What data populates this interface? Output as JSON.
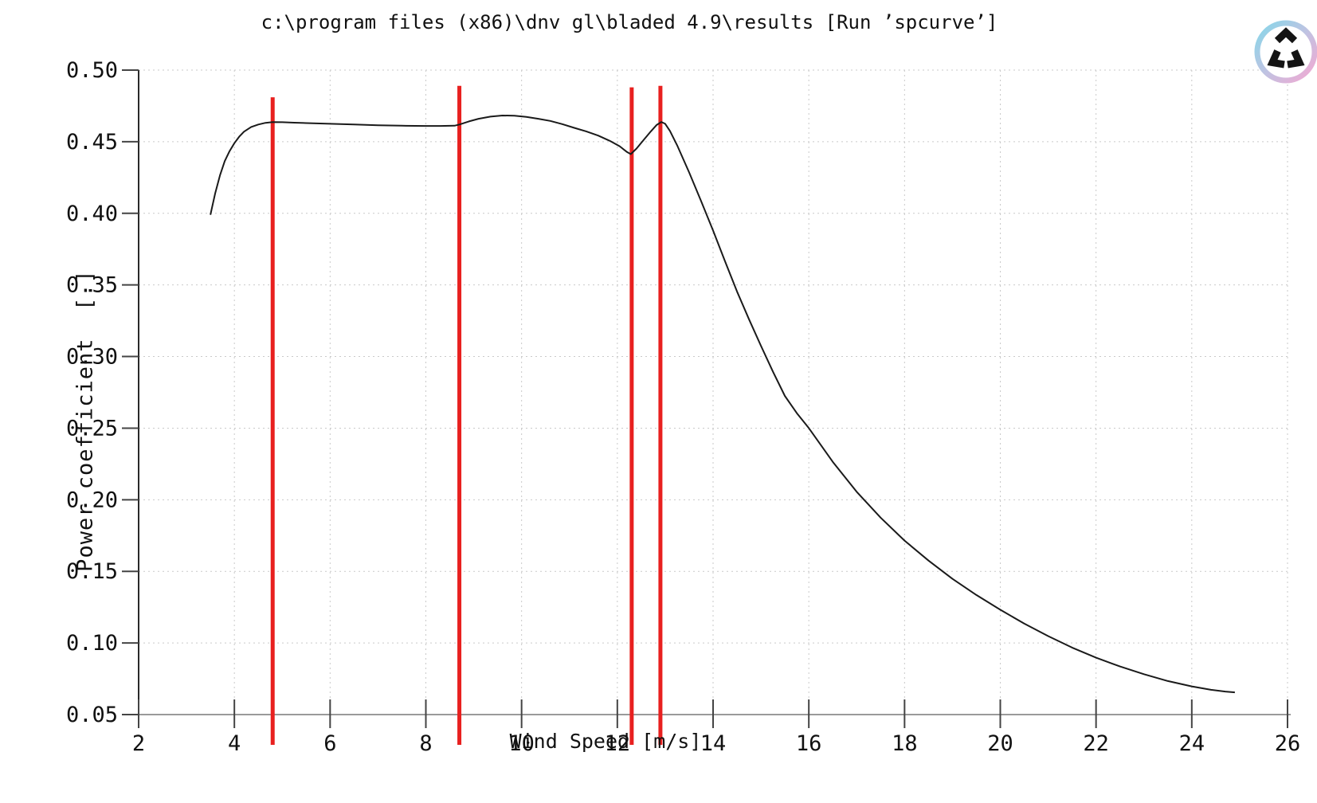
{
  "header": {
    "title": "c:\\program files (x86)\\dnv gl\\bladed 4.9\\results [Run ’spcurve’]"
  },
  "logo": {
    "name": "bladed-rotor-logo",
    "ring_color_top": "#86d7e9",
    "ring_color_bottom": "#f3a8d2",
    "glyph_color": "#141414"
  },
  "chart_data": {
    "type": "line",
    "title": "c:\\program files (x86)\\dnv gl\\bladed 4.9\\results [Run ’spcurve’]",
    "xlabel": "Wind Speed [m/s]",
    "ylabel": "Power coefficient  [.]",
    "xlim": [
      2,
      26
    ],
    "ylim": [
      0.05,
      0.5
    ],
    "grid": true,
    "legend_position": "none",
    "xticks": [
      2,
      4,
      6,
      8,
      10,
      12,
      14,
      16,
      18,
      20,
      22,
      24,
      26
    ],
    "xtick_labels": [
      "2",
      "4",
      "6",
      "8",
      "10",
      "12",
      "14",
      "16",
      "18",
      "20",
      "22",
      "24",
      "26"
    ],
    "yticks": [
      0.05,
      0.1,
      0.15,
      0.2,
      0.25,
      0.3,
      0.35,
      0.4,
      0.45,
      0.5
    ],
    "ytick_labels": [
      "0.05",
      "0.10",
      "0.15",
      "0.20",
      "0.25",
      "0.30",
      "0.35",
      "0.40",
      "0.45",
      "0.50"
    ],
    "curve_color": "#1a1a1a",
    "grid_color": "#c9c9c9",
    "marker_line_color": "#e8201f",
    "marker_lines": [
      {
        "x": 4.8,
        "top": 0.481
      },
      {
        "x": 8.7,
        "top": 0.489
      },
      {
        "x": 12.3,
        "top": 0.488
      },
      {
        "x": 12.9,
        "top": 0.489
      }
    ],
    "series": [
      {
        "name": "Power coefficient",
        "points": [
          [
            3.5,
            0.399
          ],
          [
            3.6,
            0.414
          ],
          [
            3.7,
            0.4265
          ],
          [
            3.8,
            0.4365
          ],
          [
            3.9,
            0.4435
          ],
          [
            4.0,
            0.449
          ],
          [
            4.1,
            0.4535
          ],
          [
            4.2,
            0.457
          ],
          [
            4.35,
            0.4603
          ],
          [
            4.5,
            0.462
          ],
          [
            4.65,
            0.4632
          ],
          [
            4.8,
            0.4637
          ],
          [
            5.0,
            0.4636
          ],
          [
            5.25,
            0.4633
          ],
          [
            5.5,
            0.463
          ],
          [
            6.0,
            0.4625
          ],
          [
            6.5,
            0.462
          ],
          [
            7.0,
            0.4615
          ],
          [
            7.5,
            0.4612
          ],
          [
            8.0,
            0.461
          ],
          [
            8.3,
            0.461
          ],
          [
            8.6,
            0.4612
          ],
          [
            8.7,
            0.462
          ],
          [
            8.9,
            0.4642
          ],
          [
            9.1,
            0.466
          ],
          [
            9.35,
            0.4675
          ],
          [
            9.6,
            0.4683
          ],
          [
            9.85,
            0.4682
          ],
          [
            10.1,
            0.4673
          ],
          [
            10.35,
            0.466
          ],
          [
            10.6,
            0.4645
          ],
          [
            10.85,
            0.4623
          ],
          [
            11.1,
            0.4597
          ],
          [
            11.35,
            0.4572
          ],
          [
            11.6,
            0.4543
          ],
          [
            11.85,
            0.4505
          ],
          [
            12.05,
            0.4468
          ],
          [
            12.2,
            0.4428
          ],
          [
            12.28,
            0.4413
          ],
          [
            12.4,
            0.4452
          ],
          [
            12.55,
            0.4513
          ],
          [
            12.7,
            0.4572
          ],
          [
            12.82,
            0.4617
          ],
          [
            12.92,
            0.4638
          ],
          [
            13.0,
            0.4625
          ],
          [
            13.1,
            0.4575
          ],
          [
            13.25,
            0.4475
          ],
          [
            13.5,
            0.4285
          ],
          [
            13.75,
            0.4085
          ],
          [
            14.0,
            0.388
          ],
          [
            14.25,
            0.3665
          ],
          [
            14.5,
            0.3455
          ],
          [
            14.75,
            0.326
          ],
          [
            15.0,
            0.3075
          ],
          [
            15.25,
            0.2895
          ],
          [
            15.5,
            0.2725
          ],
          [
            15.75,
            0.2605
          ],
          [
            16.0,
            0.25
          ],
          [
            16.5,
            0.2265
          ],
          [
            17.0,
            0.2055
          ],
          [
            17.5,
            0.1875
          ],
          [
            18.0,
            0.1715
          ],
          [
            18.5,
            0.1575
          ],
          [
            19.0,
            0.1448
          ],
          [
            19.5,
            0.1335
          ],
          [
            20.0,
            0.1232
          ],
          [
            20.5,
            0.1135
          ],
          [
            21.0,
            0.1048
          ],
          [
            21.5,
            0.0968
          ],
          [
            22.0,
            0.0897
          ],
          [
            22.5,
            0.0836
          ],
          [
            23.0,
            0.0782
          ],
          [
            23.5,
            0.0734
          ],
          [
            24.0,
            0.0697
          ],
          [
            24.4,
            0.0673
          ],
          [
            24.7,
            0.0661
          ],
          [
            24.9,
            0.0655
          ]
        ]
      }
    ]
  }
}
